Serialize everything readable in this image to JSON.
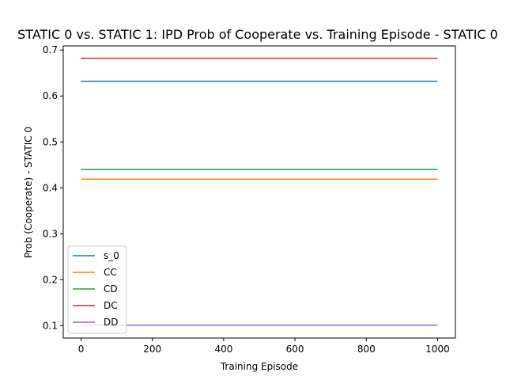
{
  "chart_data": {
    "type": "line",
    "title": "STATIC 0 vs. STATIC 1: IPD Prob of Cooperate vs. Training Episode - STATIC 0",
    "xlabel": "Training Episode",
    "ylabel": "Prob (Cooperate) - STATIC 0",
    "xlim": [
      -50,
      1050
    ],
    "ylim": [
      0.073,
      0.709
    ],
    "xticks": [
      0,
      200,
      400,
      600,
      800,
      1000
    ],
    "xtick_labels": [
      "0",
      "200",
      "400",
      "600",
      "800",
      "1000"
    ],
    "yticks": [
      0.1,
      0.2,
      0.3,
      0.4,
      0.5,
      0.6,
      0.7
    ],
    "ytick_labels": [
      "0.1",
      "0.2",
      "0.3",
      "0.4",
      "0.5",
      "0.6",
      "0.7"
    ],
    "grid": false,
    "legend_position": "lower-left",
    "series": [
      {
        "name": "s_0",
        "color": "#1f77b4",
        "x": [
          0,
          1000
        ],
        "values": [
          0.632,
          0.632
        ]
      },
      {
        "name": "CC",
        "color": "#ff7f0e",
        "x": [
          0,
          1000
        ],
        "values": [
          0.419,
          0.419
        ]
      },
      {
        "name": "CD",
        "color": "#2ca02c",
        "x": [
          0,
          1000
        ],
        "values": [
          0.44,
          0.44
        ]
      },
      {
        "name": "DC",
        "color": "#d62728",
        "x": [
          0,
          1000
        ],
        "values": [
          0.682,
          0.682
        ]
      },
      {
        "name": "DD",
        "color": "#9467bd",
        "x": [
          0,
          1000
        ],
        "values": [
          0.101,
          0.101
        ]
      }
    ]
  }
}
